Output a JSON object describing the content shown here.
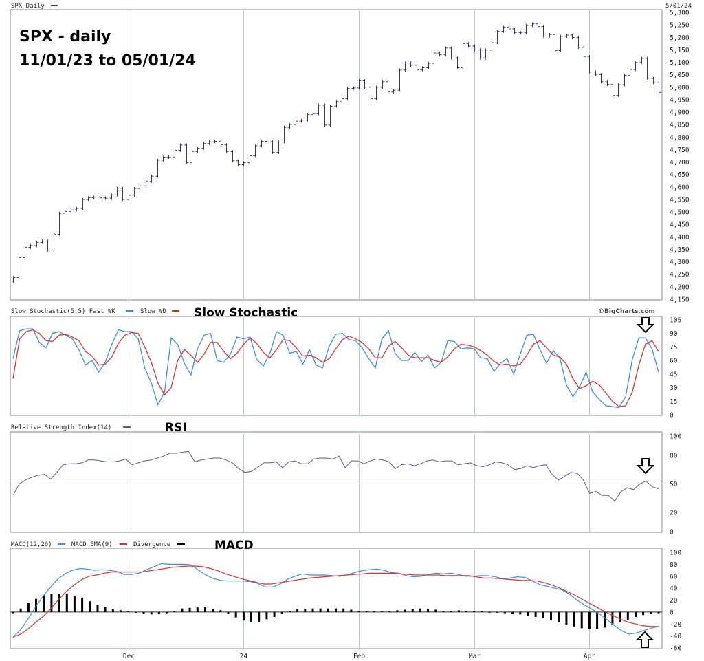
{
  "colors": {
    "ohlc": "#3a3a6a",
    "fast_k": "#3b8ef0",
    "slow_d": "#e03030",
    "rsi": "#5a5a88",
    "divergence": "#000000"
  },
  "header": {
    "symbol_label": "SPX Daily",
    "date_label": "5/01/24",
    "legend_marker": "line-dash-icon"
  },
  "price_title": {
    "line1": "SPX - daily",
    "line2": "11/01/23 to 05/01/24"
  },
  "stoch_legend": "Slow Stochastic(5,5) Fast %K",
  "stoch_legend2": "Slow %D",
  "stoch_title": "Slow Stochastic",
  "watermark": "©BigCharts.com",
  "rsi_legend": "Relative Strength Index(14)",
  "rsi_title": "RSI",
  "macd_legend1": "MACD(12,26)",
  "macd_legend2": "MACD EMA(9)",
  "macd_legend3": "Divergence",
  "macd_title": "MACD",
  "chart_data": [
    {
      "type": "ohlc",
      "title": "SPX Daily",
      "x_tick_labels": [
        "Dec",
        "24",
        "Feb",
        "Mar",
        "Apr"
      ],
      "x_tick_index": [
        20,
        40,
        60,
        80,
        100
      ],
      "ylim": [
        4150,
        5300
      ],
      "y_ticks": [
        4150,
        4200,
        4250,
        4300,
        4350,
        4400,
        4450,
        4500,
        4550,
        4600,
        4650,
        4700,
        4750,
        4800,
        4850,
        4900,
        4950,
        5000,
        5050,
        5100,
        5150,
        5200,
        5250,
        5300
      ],
      "close": [
        4237,
        4317,
        4358,
        4365,
        4378,
        4383,
        4347,
        4411,
        4495,
        4502,
        4508,
        4514,
        4550,
        4557,
        4559,
        4556,
        4555,
        4568,
        4595,
        4550,
        4567,
        4594,
        4604,
        4622,
        4643,
        4707,
        4719,
        4720,
        4747,
        4768,
        4698,
        4742,
        4755,
        4774,
        4781,
        4783,
        4769,
        4742,
        4705,
        4689,
        4697,
        4725,
        4765,
        4783,
        4781,
        4739,
        4780,
        4839,
        4850,
        4864,
        4868,
        4890,
        4894,
        4928,
        4848,
        4924,
        4942,
        4954,
        4995,
        4997,
        5026,
        5000,
        4954,
        5000,
        5022,
        4981,
        4988,
        5069,
        5097,
        5088,
        5070,
        5078,
        5096,
        5137,
        5130,
        5157,
        5117,
        5078,
        5175,
        5165,
        5150,
        5117,
        5149,
        5178,
        5224,
        5241,
        5234,
        5219,
        5218,
        5248,
        5254,
        5243,
        5205,
        5211,
        5147,
        5204,
        5209,
        5199,
        5160,
        5123,
        5061,
        5051,
        5022,
        5011,
        4967,
        5010,
        5048,
        5071,
        5099,
        5116,
        5036,
        5018,
        4979
      ]
    },
    {
      "type": "line",
      "title": "Slow Stochastic(5,5)",
      "ylim": [
        0,
        105
      ],
      "y_ticks": [
        0,
        15,
        30,
        45,
        60,
        75,
        90,
        105
      ],
      "series": [
        {
          "name": "Fast %K",
          "values": [
            62,
            93,
            95,
            95,
            80,
            74,
            90,
            92,
            88,
            84,
            72,
            55,
            60,
            47,
            58,
            78,
            94,
            92,
            92,
            84,
            52,
            35,
            11,
            25,
            85,
            78,
            57,
            44,
            73,
            88,
            90,
            60,
            58,
            67,
            86,
            84,
            86,
            61,
            54,
            68,
            92,
            88,
            68,
            70,
            56,
            72,
            55,
            52,
            76,
            89,
            90,
            83,
            82,
            74,
            62,
            52,
            84,
            93,
            68,
            60,
            60,
            69,
            59,
            66,
            52,
            58,
            82,
            81,
            73,
            74,
            73,
            63,
            62,
            48,
            57,
            62,
            45,
            67,
            88,
            89,
            72,
            57,
            71,
            63,
            33,
            20,
            31,
            47,
            25,
            17,
            10,
            9,
            8,
            20,
            61,
            85,
            85,
            73,
            47
          ]
        },
        {
          "name": "Slow %D",
          "values": [
            40,
            84,
            92,
            94,
            90,
            82,
            81,
            88,
            89,
            86,
            82,
            70,
            65,
            55,
            56,
            64,
            79,
            88,
            91,
            90,
            75,
            58,
            35,
            22,
            30,
            60,
            72,
            66,
            58,
            67,
            80,
            80,
            70,
            62,
            68,
            78,
            85,
            79,
            69,
            63,
            72,
            83,
            82,
            74,
            65,
            66,
            63,
            58,
            62,
            73,
            83,
            87,
            84,
            80,
            73,
            63,
            63,
            76,
            81,
            74,
            66,
            63,
            63,
            63,
            60,
            58,
            64,
            73,
            78,
            77,
            75,
            71,
            66,
            59,
            55,
            56,
            54,
            56,
            66,
            78,
            82,
            74,
            66,
            64,
            56,
            40,
            29,
            32,
            37,
            33,
            24,
            15,
            9,
            10,
            25,
            55,
            78,
            82,
            70
          ]
        }
      ]
    },
    {
      "type": "line",
      "title": "Relative Strength Index(14)",
      "ylim": [
        0,
        100
      ],
      "y_ticks": [
        0,
        20,
        50,
        80,
        100
      ],
      "reference_line": 50,
      "series": [
        {
          "name": "Relative Strength Index(14)",
          "values": [
            38,
            50,
            54,
            57,
            59,
            60,
            55,
            62,
            70,
            71,
            71,
            72,
            75,
            75,
            74,
            73,
            73,
            74,
            76,
            70,
            72,
            74,
            75,
            77,
            79,
            82,
            82,
            83,
            84,
            73,
            75,
            76,
            77,
            77,
            75,
            72,
            66,
            62,
            63,
            67,
            72,
            72,
            73,
            67,
            73,
            74,
            71,
            71,
            76,
            77,
            77,
            76,
            79,
            67,
            74,
            74,
            71,
            74,
            76,
            75,
            73,
            66,
            70,
            71,
            69,
            71,
            74,
            75,
            73,
            74,
            74,
            70,
            71,
            72,
            69,
            68,
            70,
            73,
            72,
            70,
            65,
            66,
            69,
            67,
            69,
            70,
            60,
            54,
            58,
            62,
            61,
            54,
            40,
            42,
            38,
            38,
            32,
            42,
            46,
            44,
            50,
            53,
            47,
            45
          ]
        }
      ]
    },
    {
      "type": "bar",
      "title": "MACD(12,26)",
      "ylim": [
        -60,
        100
      ],
      "y_ticks": [
        -60,
        -40,
        -20,
        0,
        20,
        40,
        60,
        80,
        100
      ],
      "series": [
        {
          "name": "MACD(12,26)",
          "values": [
            -42,
            -30,
            -12,
            8,
            26,
            41,
            55,
            64,
            70,
            73,
            72,
            70,
            71,
            70,
            68,
            63,
            63,
            65,
            71,
            76,
            81,
            80,
            80,
            80,
            79,
            70,
            62,
            56,
            53,
            52,
            52,
            52,
            51,
            48,
            42,
            42,
            47,
            55,
            60,
            64,
            62,
            62,
            62,
            61,
            60,
            62,
            66,
            69,
            71,
            72,
            70,
            66,
            65,
            61,
            59,
            60,
            63,
            65,
            64,
            65,
            63,
            60,
            60,
            61,
            61,
            59,
            56,
            57,
            59,
            58,
            52,
            46,
            43,
            40,
            37,
            30,
            20,
            12,
            5,
            -3,
            -12,
            -22,
            -31,
            -37,
            -35,
            -31,
            -27,
            -24
          ]
        },
        {
          "name": "MACD EMA(9)",
          "values": [
            -42,
            -37,
            -28,
            -17,
            -7,
            6,
            21,
            34,
            45,
            54,
            60,
            62,
            65,
            67,
            67,
            67,
            67,
            67,
            69,
            71,
            73,
            75,
            76,
            77,
            77,
            76,
            73,
            69,
            64,
            60,
            56,
            53,
            50,
            47,
            47,
            49,
            51,
            53,
            55,
            57,
            58,
            59,
            60,
            61,
            62,
            63,
            64,
            65,
            65,
            65,
            65,
            64,
            63,
            62,
            62,
            62,
            62,
            61,
            61,
            61,
            61,
            59,
            57,
            57,
            56,
            55,
            54,
            53,
            53,
            52,
            49,
            45,
            40,
            34,
            28,
            21,
            14,
            7,
            0,
            -6,
            -12,
            -17,
            -20,
            -23,
            -24,
            -24
          ]
        },
        {
          "name": "Divergence",
          "values": [
            -2,
            6,
            16,
            22,
            28,
            30,
            30,
            31,
            27,
            24,
            18,
            12,
            8,
            5,
            3,
            1,
            0,
            -3,
            -4,
            -3,
            -2,
            2,
            6,
            7,
            8,
            8,
            5,
            3,
            -3,
            -9,
            -14,
            -16,
            -16,
            -12,
            -8,
            -3,
            2,
            5,
            5,
            6,
            6,
            6,
            6,
            6,
            4,
            2,
            1,
            1,
            1,
            2,
            3,
            4,
            5,
            6,
            5,
            4,
            2,
            2,
            3,
            2,
            2,
            1,
            0,
            -1,
            -2,
            -3,
            -4,
            -6,
            -8,
            -10,
            -14,
            -17,
            -21,
            -24,
            -27,
            -28,
            -28,
            -26,
            -22,
            -17,
            -13,
            -8,
            -5,
            -3,
            -2
          ]
        }
      ]
    }
  ]
}
